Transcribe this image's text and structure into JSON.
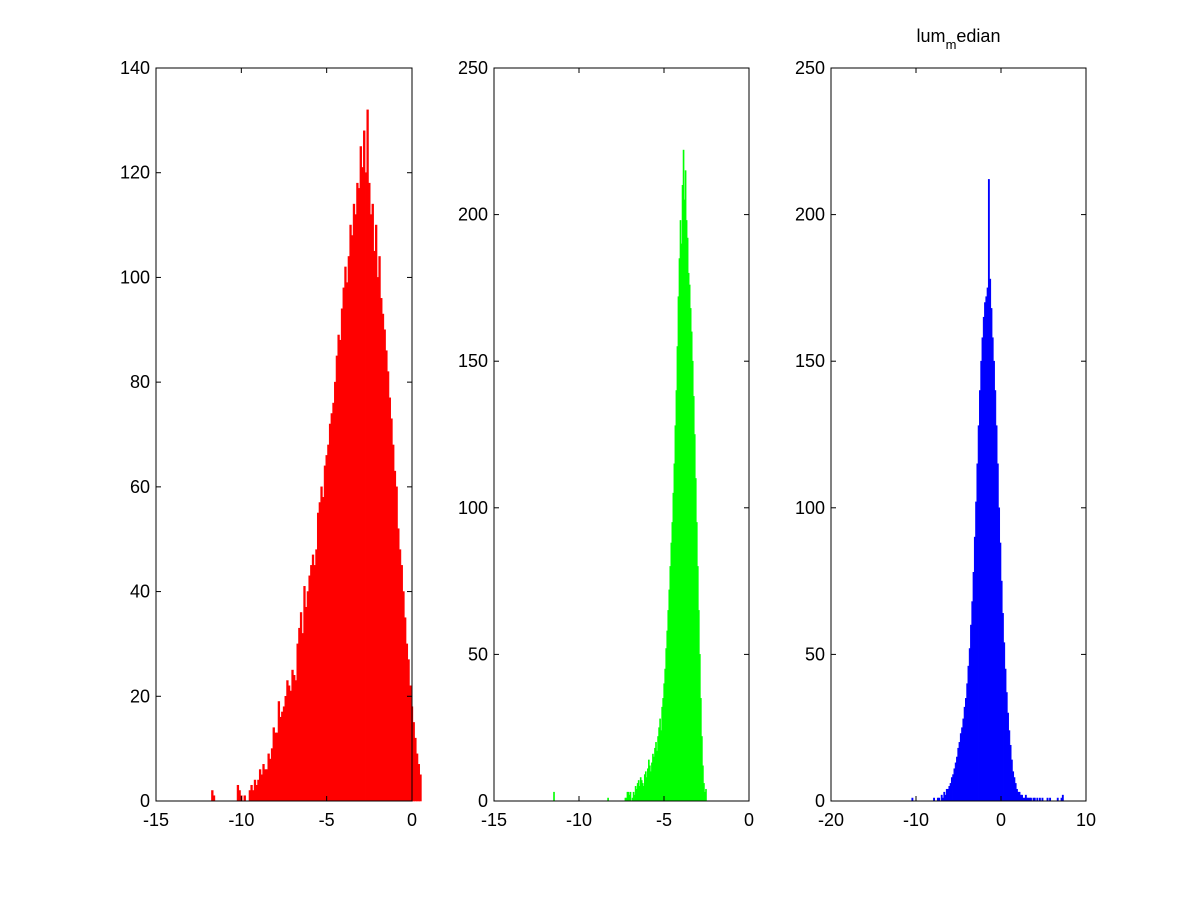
{
  "chart_data": [
    {
      "type": "bar",
      "title": "",
      "xlabel": "",
      "ylabel": "",
      "color": "#ff0000",
      "xlim": [
        -15,
        0
      ],
      "ylim": [
        0,
        140
      ],
      "xticks": [
        -15,
        -10,
        -5,
        0
      ],
      "yticks": [
        0,
        20,
        40,
        60,
        80,
        100,
        120,
        140
      ],
      "grid": false,
      "bins": {
        "start": -11.75,
        "width": 0.1,
        "values": [
          2,
          1,
          0,
          0,
          0,
          0,
          0,
          0,
          0,
          0,
          0,
          0,
          0,
          0,
          0,
          3,
          2,
          1,
          0,
          1,
          0,
          0,
          2,
          3,
          2,
          4,
          3,
          4,
          6,
          5,
          7,
          6,
          6,
          9,
          8,
          10,
          14,
          13,
          13,
          19,
          16,
          17,
          18,
          20,
          23,
          22,
          21,
          25,
          24,
          23,
          30,
          33,
          36,
          32,
          41,
          37,
          40,
          43,
          45,
          47,
          45,
          48,
          55,
          57,
          60,
          58,
          64,
          66,
          68,
          72,
          74,
          76,
          80,
          85,
          89,
          88,
          94,
          98,
          102,
          99,
          104,
          110,
          108,
          114,
          112,
          118,
          117,
          125,
          121,
          128,
          120,
          132,
          118,
          112,
          114,
          105,
          110,
          100,
          104,
          96,
          93,
          90,
          86,
          82,
          77,
          73,
          68,
          63,
          60,
          52,
          48,
          45,
          40,
          35,
          30,
          27,
          22,
          18,
          15,
          12,
          9,
          7,
          5
        ]
      }
    },
    {
      "type": "bar",
      "title": "",
      "xlabel": "",
      "ylabel": "",
      "color": "#00ff00",
      "xlim": [
        -15,
        0
      ],
      "ylim": [
        0,
        250
      ],
      "xticks": [
        -15,
        -10,
        -5,
        0
      ],
      "yticks": [
        0,
        50,
        100,
        150,
        200,
        250
      ],
      "grid": false,
      "bins": {
        "start": -11.5,
        "width": 0.06,
        "values": [
          3,
          0,
          0,
          0,
          0,
          0,
          0,
          0,
          0,
          0,
          0,
          0,
          0,
          0,
          0,
          0,
          0,
          0,
          0,
          0,
          0,
          0,
          0,
          0,
          0,
          0,
          0,
          0,
          0,
          0,
          0,
          0,
          0,
          0,
          0,
          0,
          0,
          0,
          0,
          0,
          0,
          0,
          0,
          0,
          0,
          0,
          0,
          0,
          0,
          0,
          0,
          0,
          0,
          1,
          0,
          0,
          0,
          0,
          0,
          0,
          0,
          0,
          0,
          0,
          0,
          0,
          0,
          0,
          0,
          0,
          1,
          1,
          3,
          3,
          2,
          3,
          0,
          1,
          3,
          2,
          5,
          4,
          6,
          7,
          5,
          8,
          7,
          6,
          5,
          9,
          10,
          8,
          11,
          14,
          12,
          10,
          13,
          16,
          15,
          18,
          20,
          17,
          22,
          25,
          28,
          24,
          32,
          35,
          40,
          45,
          52,
          58,
          65,
          72,
          80,
          88,
          95,
          105,
          115,
          128,
          140,
          155,
          172,
          185,
          198,
          190,
          210,
          222,
          205,
          215,
          198,
          192,
          180,
          176,
          168,
          160,
          150,
          138,
          125,
          110,
          95,
          80,
          65,
          50,
          35,
          22,
          12,
          6,
          3,
          4
        ]
      }
    },
    {
      "type": "bar",
      "title": "lum_median",
      "title_main": "lum",
      "title_sub": "m",
      "title_rest": "edian",
      "xlabel": "",
      "ylabel": "",
      "color": "#0000ff",
      "xlim": [
        -20,
        10
      ],
      "ylim": [
        0,
        250
      ],
      "xticks": [
        -20,
        -10,
        0,
        10
      ],
      "yticks": [
        0,
        50,
        100,
        150,
        200,
        250
      ],
      "grid": false,
      "bins": {
        "start": -10.5,
        "width": 0.15,
        "values": [
          1,
          0,
          0,
          0,
          0,
          0,
          0,
          0,
          0,
          0,
          0,
          0,
          0,
          0,
          0,
          0,
          0,
          1,
          0,
          0,
          1,
          1,
          0,
          2,
          1,
          3,
          2,
          4,
          4,
          5,
          6,
          8,
          9,
          11,
          13,
          15,
          18,
          20,
          23,
          25,
          28,
          32,
          35,
          40,
          46,
          52,
          60,
          68,
          78,
          90,
          102,
          115,
          128,
          140,
          150,
          158,
          165,
          170,
          172,
          175,
          212,
          178,
          168,
          158,
          150,
          140,
          128,
          115,
          100,
          88,
          75,
          64,
          54,
          45,
          37,
          30,
          24,
          19,
          14,
          10,
          8,
          6,
          4,
          3,
          3,
          2,
          2,
          1,
          1,
          2,
          1,
          1,
          1,
          1,
          0,
          1,
          1,
          0,
          1,
          0,
          1,
          0,
          1,
          0,
          0,
          0,
          1,
          0,
          1,
          0,
          0,
          0,
          0,
          0,
          1,
          0,
          0,
          1,
          2
        ]
      }
    }
  ]
}
